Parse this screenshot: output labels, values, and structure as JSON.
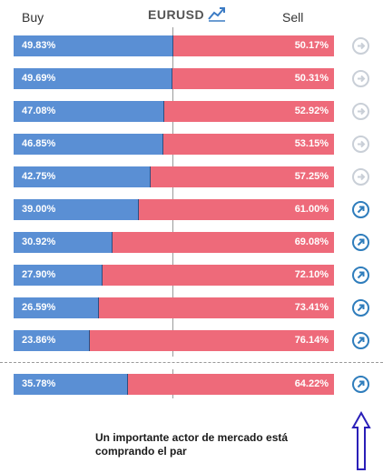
{
  "header": {
    "buy_label": "Buy",
    "sell_label": "Sell",
    "pair": "EURUSD",
    "trend_icon": "trend-chart-icon"
  },
  "rows": [
    {
      "buy": "49.83%",
      "sell": "50.17%",
      "buy_pct": 49.83,
      "signal": "neutral"
    },
    {
      "buy": "49.69%",
      "sell": "50.31%",
      "buy_pct": 49.69,
      "signal": "neutral"
    },
    {
      "buy": "47.08%",
      "sell": "52.92%",
      "buy_pct": 47.08,
      "signal": "neutral"
    },
    {
      "buy": "46.85%",
      "sell": "53.15%",
      "buy_pct": 46.85,
      "signal": "neutral"
    },
    {
      "buy": "42.75%",
      "sell": "57.25%",
      "buy_pct": 42.75,
      "signal": "neutral"
    },
    {
      "buy": "39.00%",
      "sell": "61.00%",
      "buy_pct": 39.0,
      "signal": "up"
    },
    {
      "buy": "30.92%",
      "sell": "69.08%",
      "buy_pct": 30.92,
      "signal": "up"
    },
    {
      "buy": "27.90%",
      "sell": "72.10%",
      "buy_pct": 27.9,
      "signal": "up"
    },
    {
      "buy": "26.59%",
      "sell": "73.41%",
      "buy_pct": 26.59,
      "signal": "up"
    },
    {
      "buy": "23.86%",
      "sell": "76.14%",
      "buy_pct": 23.86,
      "signal": "up"
    }
  ],
  "summary": {
    "buy": "35.78%",
    "sell": "64.22%",
    "buy_pct": 35.78,
    "signal": "up"
  },
  "note": "Un importante actor de mercado está comprando el par",
  "colors": {
    "buy": "#5a8fd4",
    "sell": "#ee6a7a",
    "signal_up": "#2f7dbc",
    "signal_neutral": "#c9cfd7",
    "annotation_arrow": "#2a1fb8"
  }
}
